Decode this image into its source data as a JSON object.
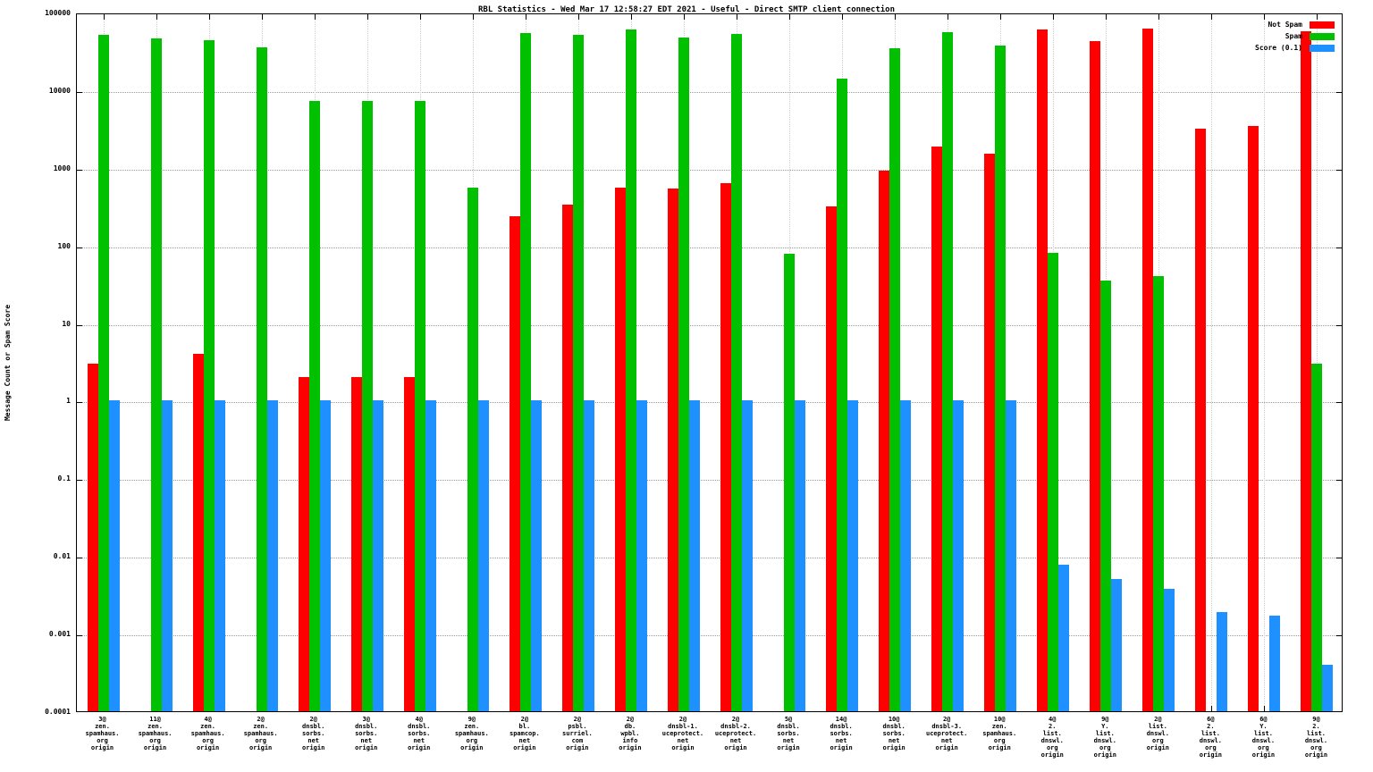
{
  "chart_data": {
    "type": "bar",
    "title": "RBL Statistics - Wed Mar 17 12:58:27 EDT 2021 - Useful - Direct SMTP client connection",
    "ylabel": "Message Count or Spam Score",
    "xlabel": "",
    "scale": "log10",
    "ylim": [
      0.0001,
      100000
    ],
    "y_ticks": [
      "100000",
      "10000",
      "1000",
      "100",
      "10",
      "1",
      "0.1",
      "0.01",
      "0.001",
      "0.0001"
    ],
    "grid": true,
    "legend_position": "top-right-inside",
    "categories": [
      [
        "3@",
        "zen.",
        "spamhaus.",
        "org",
        "origin"
      ],
      [
        "11@",
        "zen.",
        "spamhaus.",
        "org",
        "origin"
      ],
      [
        "4@",
        "zen.",
        "spamhaus.",
        "org",
        "origin"
      ],
      [
        "2@",
        "zen.",
        "spamhaus.",
        "org",
        "origin"
      ],
      [
        "2@",
        "dnsbl.",
        "sorbs.",
        "net",
        "origin"
      ],
      [
        "3@",
        "dnsbl.",
        "sorbs.",
        "net",
        "origin"
      ],
      [
        "4@",
        "dnsbl.",
        "sorbs.",
        "net",
        "origin"
      ],
      [
        "9@",
        "zen.",
        "spamhaus.",
        "org",
        "origin"
      ],
      [
        "2@",
        "bl.",
        "spamcop.",
        "net",
        "origin"
      ],
      [
        "2@",
        "psbl.",
        "surriel.",
        "com",
        "origin"
      ],
      [
        "2@",
        "db.",
        "wpbl.",
        "info",
        "origin"
      ],
      [
        "2@",
        "dnsbl-1.",
        "uceprotect.",
        "net",
        "origin"
      ],
      [
        "2@",
        "dnsbl-2.",
        "uceprotect.",
        "net",
        "origin"
      ],
      [
        "5@",
        "dnsbl.",
        "sorbs.",
        "net",
        "origin"
      ],
      [
        "14@",
        "dnsbl.",
        "sorbs.",
        "net",
        "origin"
      ],
      [
        "10@",
        "dnsbl.",
        "sorbs.",
        "net",
        "origin"
      ],
      [
        "2@",
        "dnsbl-3.",
        "uceprotect.",
        "net",
        "origin"
      ],
      [
        "10@",
        "zen.",
        "spamhaus.",
        "org",
        "origin"
      ],
      [
        "4@",
        "2.",
        "list.",
        "dnswl.",
        "org",
        "origin"
      ],
      [
        "9@",
        "Y.",
        "list.",
        "dnswl.",
        "org",
        "origin"
      ],
      [
        "2@",
        "list.",
        "dnswl.",
        "org",
        "origin"
      ],
      [
        "6@",
        "2.",
        "list.",
        "dnswl.",
        "org",
        "origin"
      ],
      [
        "6@",
        "Y.",
        "list.",
        "dnswl.",
        "org",
        "origin"
      ],
      [
        "9@",
        "2.",
        "list.",
        "dnswl.",
        "org",
        "origin"
      ]
    ],
    "series": [
      {
        "name": "Not Spam",
        "color": "#ff0000",
        "values": [
          3,
          null,
          4,
          null,
          2,
          2,
          2,
          null,
          240,
          340,
          560,
          540,
          640,
          null,
          320,
          920,
          1900,
          1500,
          60000,
          43000,
          62000,
          3200,
          3500,
          58000
        ]
      },
      {
        "name": "Spam",
        "color": "#00c000",
        "values": [
          52000,
          47000,
          44000,
          36000,
          7200,
          7200,
          7200,
          560,
          54000,
          51000,
          60000,
          48000,
          53000,
          78,
          14000,
          35000,
          56000,
          38000,
          80,
          35,
          40,
          null,
          null,
          3
        ]
      },
      {
        "name": "Score (0.1)",
        "color": "#1e90ff",
        "values": [
          1,
          1,
          1,
          1,
          1,
          1,
          1,
          1,
          1,
          1,
          1,
          1,
          1,
          1,
          1,
          1,
          1,
          1,
          0.0078,
          0.005,
          0.0038,
          0.0019,
          0.0017,
          0.0004
        ]
      }
    ]
  }
}
